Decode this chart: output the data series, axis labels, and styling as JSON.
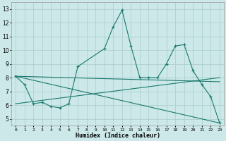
{
  "xlabel": "Humidex (Indice chaleur)",
  "xlim": [
    -0.5,
    23.5
  ],
  "ylim": [
    4.5,
    13.5
  ],
  "yticks": [
    5,
    6,
    7,
    8,
    9,
    10,
    11,
    12,
    13
  ],
  "xticks": [
    0,
    1,
    2,
    3,
    4,
    5,
    6,
    7,
    8,
    9,
    10,
    11,
    12,
    13,
    14,
    15,
    16,
    17,
    18,
    19,
    20,
    21,
    22,
    23
  ],
  "background_color": "#cce8e8",
  "grid_color": "#aacccc",
  "line_color": "#1a7a6e",
  "series_main": {
    "x": [
      0,
      1,
      2,
      3,
      4,
      5,
      6,
      7,
      10,
      11,
      12,
      13,
      14,
      15,
      16,
      17,
      18,
      19,
      20,
      21,
      22,
      23
    ],
    "y": [
      8.1,
      7.5,
      6.1,
      6.2,
      5.9,
      5.8,
      6.1,
      8.8,
      10.1,
      11.7,
      12.9,
      10.3,
      8.0,
      8.0,
      8.0,
      9.0,
      10.3,
      10.4,
      8.5,
      7.5,
      6.6,
      4.7
    ]
  },
  "series_line1": {
    "x": [
      0,
      23
    ],
    "y": [
      8.1,
      7.7
    ]
  },
  "series_line2": {
    "x": [
      0,
      23
    ],
    "y": [
      6.1,
      8.0
    ]
  },
  "series_line3": {
    "x": [
      0,
      23
    ],
    "y": [
      8.1,
      4.7
    ]
  }
}
